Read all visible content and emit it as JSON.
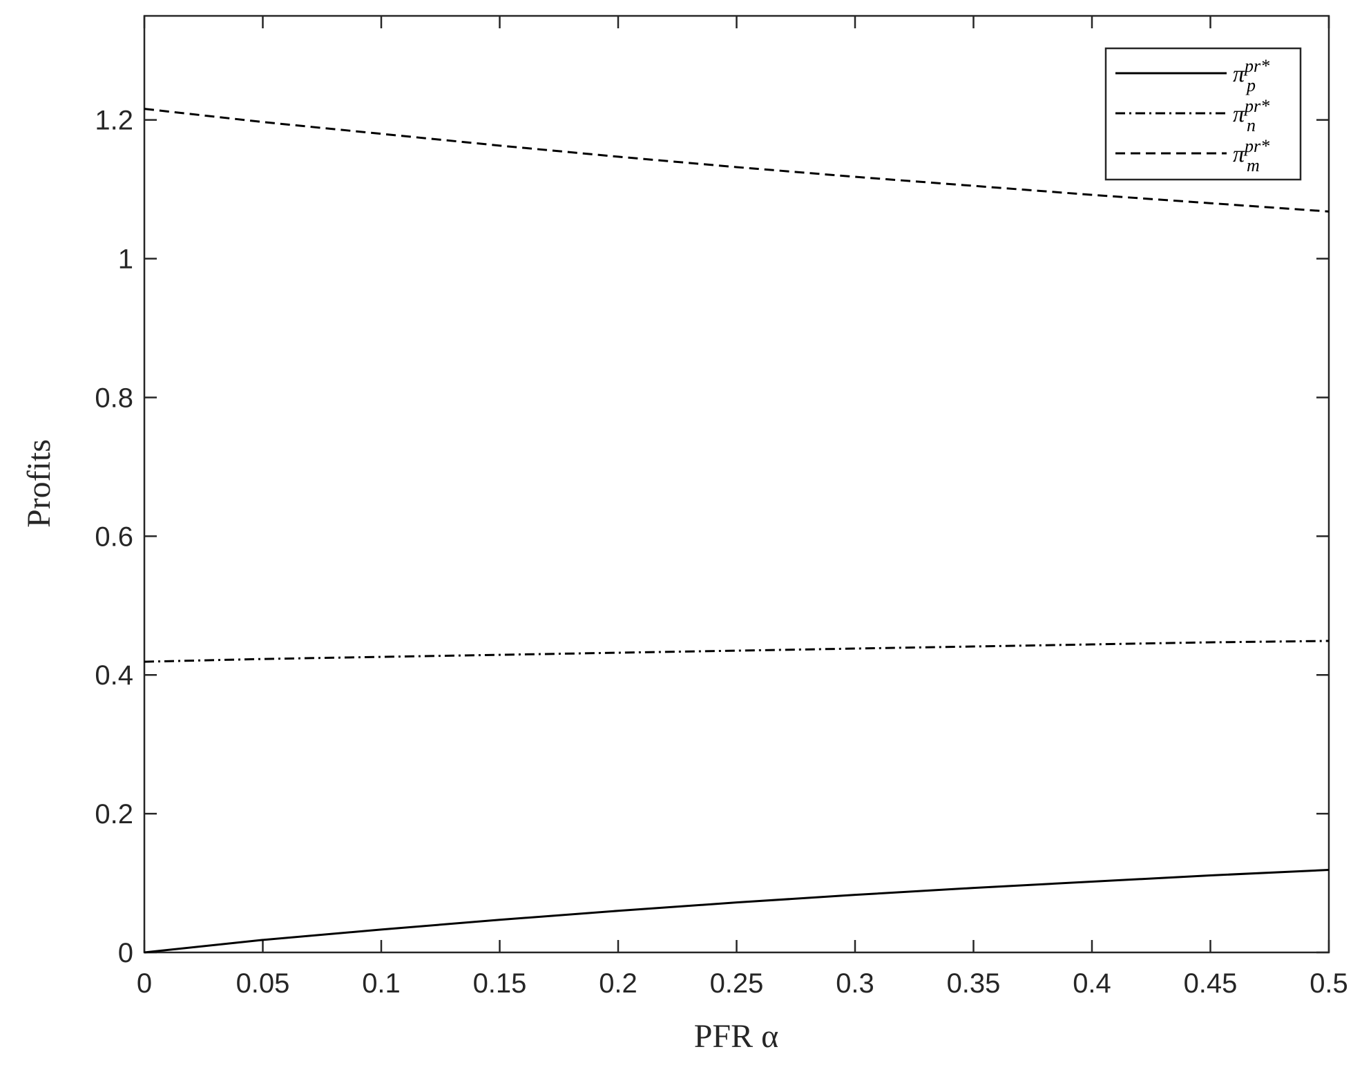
{
  "chart_data": {
    "type": "line",
    "x_label": "PFR α",
    "y_label": "Profits",
    "x": [
      0,
      0.05,
      0.1,
      0.15,
      0.2,
      0.25,
      0.3,
      0.35,
      0.4,
      0.45,
      0.5
    ],
    "series": [
      {
        "name": "π_p^{pr*}",
        "color": "#000000",
        "linestyle": "solid",
        "values": [
          0,
          0.018,
          0.033,
          0.047,
          0.06,
          0.072,
          0.083,
          0.093,
          0.102,
          0.111,
          0.119
        ]
      },
      {
        "name": "π_n^{pr*}",
        "color": "#000000",
        "linestyle": "dashdot",
        "values": [
          0.419,
          0.423,
          0.426,
          0.429,
          0.432,
          0.435,
          0.438,
          0.441,
          0.444,
          0.447,
          0.449
        ]
      },
      {
        "name": "π_m^{pr*}",
        "color": "#000000",
        "linestyle": "dashed",
        "values": [
          1.216,
          1.197,
          1.18,
          1.163,
          1.147,
          1.132,
          1.118,
          1.105,
          1.092,
          1.08,
          1.068
        ]
      }
    ],
    "xlim": [
      0,
      0.5
    ],
    "xticks": [
      0,
      0.05,
      0.1,
      0.15,
      0.2,
      0.25,
      0.3,
      0.35,
      0.4,
      0.45,
      0.5
    ],
    "ylim": [
      0,
      1.35
    ],
    "yticks": [
      0,
      0.2,
      0.4,
      0.6,
      0.8,
      1,
      1.2
    ],
    "grid": false,
    "legend": "top-right"
  }
}
